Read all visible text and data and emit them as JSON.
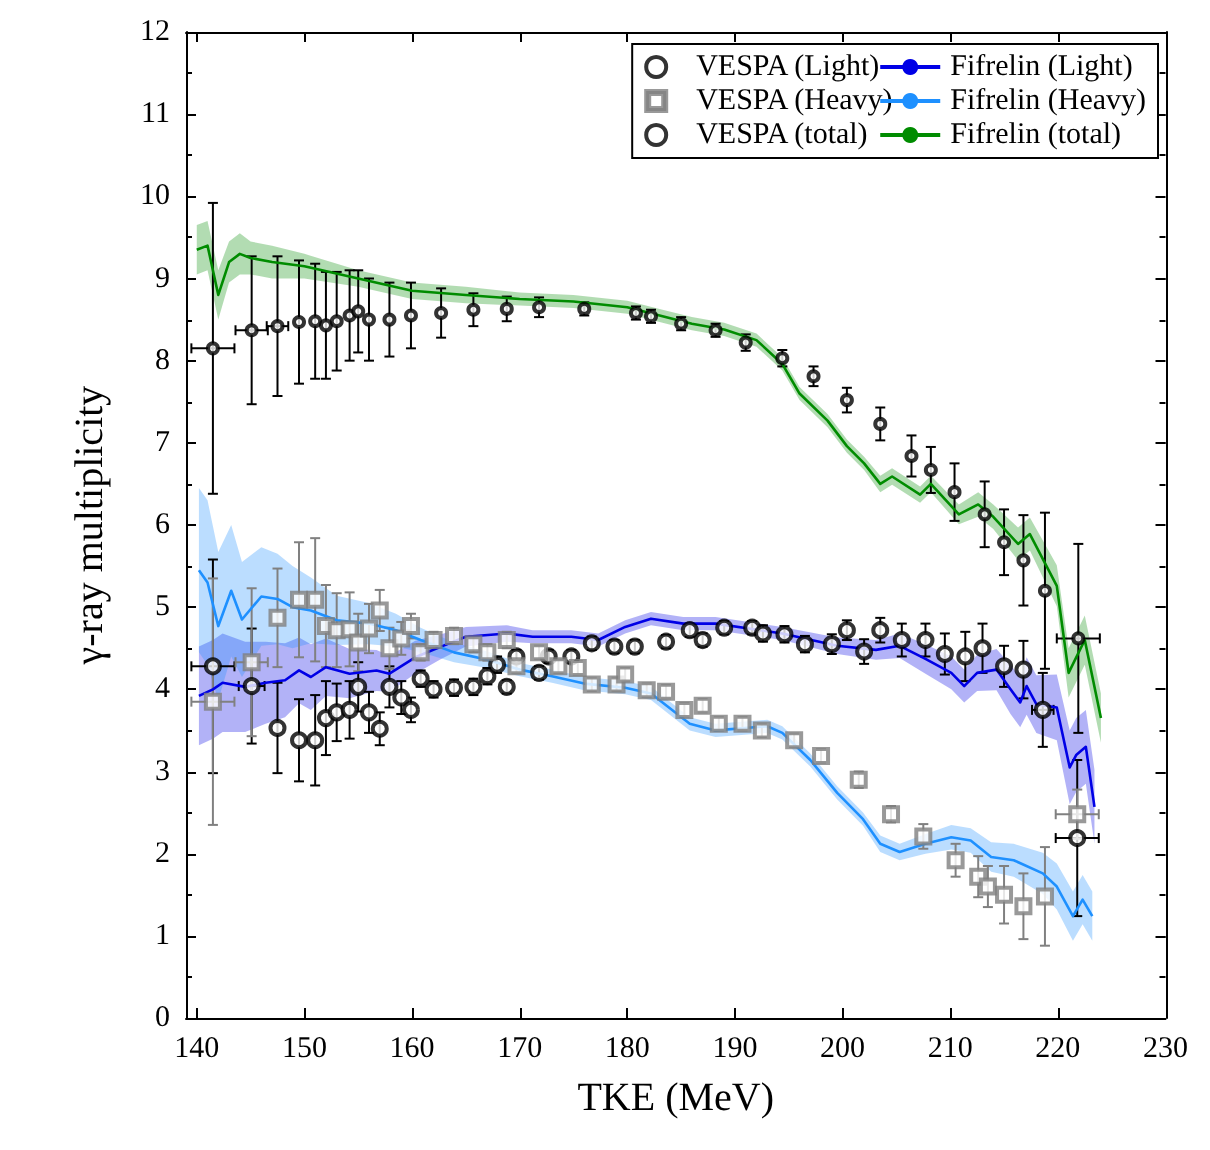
{
  "chart_data": {
    "type": "scatter",
    "xlabel": "TKE (MeV)",
    "ylabel": "γ-ray multiplicity",
    "xlim": [
      139,
      230
    ],
    "xticks": [
      140,
      150,
      160,
      170,
      180,
      190,
      200,
      210,
      220,
      230
    ],
    "ylim": [
      0,
      12
    ],
    "yticks": [
      0,
      1,
      2,
      3,
      4,
      5,
      6,
      7,
      8,
      9,
      10,
      11,
      12
    ],
    "grid": false,
    "legend": "top right",
    "series": [
      {
        "name": "VESPA (Light)",
        "marker": "circle",
        "color": "#000000",
        "x": [
          141.5,
          145.1,
          147.5,
          149.5,
          151,
          152,
          153,
          154.2,
          155,
          156,
          157,
          157.9,
          159,
          159.9,
          160.8,
          162,
          163.9,
          165.7,
          167,
          167.9,
          168.8,
          169.7,
          171.8,
          172.7,
          174.8,
          176.7,
          178.8,
          180.7,
          183.6,
          185.8,
          187,
          189,
          191.6,
          192.6,
          194.6,
          196.5,
          199,
          200.4,
          202,
          203.5,
          205.5,
          207.7,
          209.5,
          211.4,
          213,
          215,
          216.8,
          218.6,
          221.8
        ],
        "values": [
          4.28,
          4.04,
          3.53,
          3.38,
          3.38,
          3.65,
          3.72,
          3.75,
          4.03,
          3.72,
          3.52,
          4.03,
          3.9,
          3.75,
          4.13,
          4.0,
          4.02,
          4.03,
          4.16,
          4.3,
          4.03,
          4.4,
          4.2,
          4.4,
          4.4,
          4.56,
          4.52,
          4.52,
          4.58,
          4.72,
          4.6,
          4.75,
          4.75,
          4.68,
          4.67,
          4.55,
          4.55,
          4.72,
          4.46,
          4.72,
          4.6,
          4.6,
          4.43,
          4.4,
          4.5,
          4.28,
          4.24,
          3.75,
          2.19
        ],
        "errors": [
          1.3,
          0.7,
          0.55,
          0.5,
          0.55,
          0.45,
          0.35,
          0.35,
          0.3,
          0.25,
          0.2,
          0.25,
          0.2,
          0.15,
          0.1,
          0.1,
          0.1,
          0.1,
          0.1,
          0.1,
          0.08,
          0.08,
          0.08,
          0.08,
          0.08,
          0.08,
          0.08,
          0.08,
          0.08,
          0.08,
          0.08,
          0.08,
          0.08,
          0.1,
          0.1,
          0.1,
          0.12,
          0.12,
          0.15,
          0.15,
          0.2,
          0.2,
          0.25,
          0.3,
          0.3,
          0.25,
          0.35,
          0.45,
          0.95
        ],
        "xerrors": [
          2,
          1.2,
          null,
          null,
          null,
          null,
          null,
          null,
          null,
          null,
          null,
          null,
          null,
          null,
          null,
          null,
          null,
          null,
          null,
          null,
          null,
          null,
          null,
          null,
          null,
          null,
          null,
          null,
          null,
          null,
          null,
          null,
          null,
          null,
          null,
          null,
          null,
          null,
          null,
          null,
          null,
          null,
          null,
          null,
          null,
          null,
          null,
          1,
          2
        ]
      },
      {
        "name": "VESPA (Heavy)",
        "marker": "square",
        "color": "#808080",
        "x": [
          141.5,
          145.1,
          147.5,
          149.5,
          151,
          152,
          153,
          154.2,
          155,
          156,
          157,
          157.9,
          159,
          159.9,
          160.8,
          162,
          163.9,
          165.7,
          167,
          168.8,
          169.7,
          171.8,
          173.6,
          175.4,
          176.7,
          179,
          179.8,
          181.8,
          183.6,
          185.3,
          187,
          188.5,
          190.7,
          192.5,
          195.5,
          198,
          201.5,
          204.5,
          207.5,
          210.5,
          212.6,
          213.5,
          215,
          216.8,
          218.8,
          221.8
        ],
        "values": [
          3.85,
          4.33,
          4.87,
          5.09,
          5.09,
          4.77,
          4.72,
          4.73,
          4.57,
          4.74,
          4.96,
          4.5,
          4.62,
          4.77,
          4.45,
          4.6,
          4.65,
          4.55,
          4.45,
          4.6,
          4.28,
          4.45,
          4.28,
          4.26,
          4.06,
          4.06,
          4.18,
          3.99,
          3.97,
          3.75,
          3.8,
          3.58,
          3.58,
          3.5,
          3.38,
          3.19,
          2.9,
          2.48,
          2.21,
          1.92,
          1.72,
          1.6,
          1.5,
          1.36,
          1.48,
          2.48
        ],
        "errors": [
          1.5,
          0.9,
          0.6,
          0.7,
          0.75,
          0.5,
          0.45,
          0.45,
          0.35,
          0.3,
          0.25,
          0.25,
          0.2,
          0.15,
          0.1,
          0.1,
          0.1,
          0.1,
          0.1,
          0.1,
          0.08,
          0.08,
          0.08,
          0.08,
          0.08,
          0.08,
          0.08,
          0.08,
          0.08,
          0.08,
          0.08,
          0.08,
          0.08,
          0.08,
          0.08,
          0.08,
          0.1,
          0.1,
          0.15,
          0.2,
          0.25,
          0.25,
          0.35,
          0.4,
          0.6,
          0.3
        ],
        "xerrors": [
          2,
          1.5,
          null,
          null,
          null,
          null,
          null,
          null,
          null,
          null,
          null,
          null,
          null,
          null,
          null,
          null,
          null,
          null,
          null,
          null,
          null,
          null,
          null,
          null,
          null,
          null,
          null,
          null,
          null,
          null,
          null,
          null,
          null,
          null,
          null,
          null,
          null,
          null,
          null,
          null,
          null,
          null,
          null,
          null,
          null,
          2
        ]
      },
      {
        "name": "VESPA (total)",
        "marker": "circle",
        "color": "#000000",
        "x": [
          141.5,
          145.1,
          147.5,
          149.5,
          151,
          152,
          153,
          154.2,
          155,
          156,
          157.9,
          159.9,
          162.7,
          165.7,
          168.8,
          171.8,
          176,
          180.8,
          182.2,
          185,
          188.2,
          191,
          194.4,
          197.3,
          200.4,
          203.5,
          206.4,
          208.2,
          210.4,
          213.2,
          215,
          216.8,
          218.8,
          221.9
        ],
        "values": [
          8.15,
          8.37,
          8.42,
          8.47,
          8.48,
          8.43,
          8.48,
          8.55,
          8.6,
          8.5,
          8.5,
          8.55,
          8.58,
          8.62,
          8.63,
          8.65,
          8.63,
          8.58,
          8.54,
          8.45,
          8.37,
          8.22,
          8.03,
          7.81,
          7.52,
          7.23,
          6.84,
          6.67,
          6.4,
          6.13,
          5.79,
          5.57,
          5.2,
          4.62
        ],
        "errors": [
          1.77,
          0.9,
          0.85,
          0.75,
          0.7,
          0.65,
          0.6,
          0.55,
          0.5,
          0.5,
          0.45,
          0.4,
          0.3,
          0.2,
          0.15,
          0.12,
          0.08,
          0.08,
          0.08,
          0.08,
          0.08,
          0.1,
          0.1,
          0.12,
          0.15,
          0.2,
          0.25,
          0.28,
          0.35,
          0.4,
          0.4,
          0.55,
          0.95,
          1.15
        ],
        "xerrors": [
          2,
          1.5,
          1,
          null,
          null,
          null,
          null,
          null,
          null,
          null,
          null,
          null,
          null,
          null,
          null,
          null,
          null,
          null,
          null,
          null,
          null,
          null,
          null,
          null,
          null,
          null,
          null,
          null,
          null,
          null,
          null,
          null,
          null,
          2
        ]
      },
      {
        "name": "Fifrelin (Light)",
        "type": "line",
        "marker": "none",
        "color": "#0000e6",
        "x": [
          140.2,
          141.5,
          142.4,
          144.5,
          146.4,
          148.2,
          149.5,
          150.6,
          152,
          154.2,
          156.7,
          157.9,
          160.3,
          162.7,
          165,
          168.8,
          171.2,
          174.8,
          177.3,
          179.8,
          182.2,
          185.2,
          188.2,
          194.4,
          199.5,
          203.1,
          205.3,
          207.7,
          210.1,
          211.3,
          212.5,
          214.3,
          215.6,
          216.5,
          217.1,
          218,
          219.9,
          221.1,
          221.7,
          222.6,
          223.4
        ],
        "values": [
          3.92,
          4.0,
          4.08,
          4.03,
          4.08,
          4.11,
          4.23,
          4.15,
          4.27,
          4.19,
          4.23,
          4.19,
          4.39,
          4.52,
          4.64,
          4.68,
          4.64,
          4.64,
          4.6,
          4.76,
          4.86,
          4.8,
          4.8,
          4.68,
          4.53,
          4.48,
          4.53,
          4.37,
          4.2,
          4.04,
          4.2,
          4.24,
          4.0,
          3.84,
          4.04,
          3.82,
          3.78,
          3.05,
          3.2,
          3.3,
          2.57
        ],
        "lower": [
          3.32,
          3.4,
          3.48,
          3.48,
          3.58,
          3.66,
          3.83,
          3.75,
          3.92,
          3.89,
          3.98,
          3.97,
          4.19,
          4.37,
          4.52,
          4.58,
          4.56,
          4.56,
          4.52,
          4.68,
          4.78,
          4.72,
          4.72,
          4.6,
          4.43,
          4.36,
          4.38,
          4.19,
          4.0,
          3.84,
          3.98,
          3.99,
          3.7,
          3.54,
          3.69,
          3.47,
          3.38,
          2.6,
          2.75,
          2.85,
          2.12
        ],
        "upper": [
          4.52,
          4.6,
          4.68,
          4.58,
          4.58,
          4.56,
          4.63,
          4.55,
          4.62,
          4.49,
          4.48,
          4.41,
          4.59,
          4.67,
          4.76,
          4.78,
          4.72,
          4.72,
          4.68,
          4.84,
          4.94,
          4.88,
          4.88,
          4.76,
          4.63,
          4.6,
          4.68,
          4.55,
          4.4,
          4.24,
          4.42,
          4.49,
          4.3,
          4.14,
          4.39,
          4.17,
          4.18,
          3.5,
          3.65,
          3.75,
          3.02
        ]
      },
      {
        "name": "Fifrelin (Heavy)",
        "type": "line",
        "marker": "none",
        "color": "#1e90ff",
        "x": [
          140.2,
          141,
          142,
          143.2,
          144.2,
          146,
          147.5,
          148.9,
          150.6,
          153,
          156,
          158.5,
          160.8,
          163.9,
          167,
          170,
          173,
          176,
          179.8,
          182.2,
          185.8,
          188.2,
          193,
          194.4,
          197,
          199.5,
          201.9,
          203.5,
          205.3,
          207.7,
          210.1,
          211.9,
          213.8,
          215.9,
          218.6,
          219.9,
          221.4,
          222.3,
          223.2
        ],
        "values": [
          5.45,
          5.3,
          4.77,
          5.2,
          4.85,
          5.13,
          5.1,
          5.0,
          4.96,
          4.84,
          4.8,
          4.72,
          4.6,
          4.45,
          4.36,
          4.24,
          4.16,
          4.07,
          4.02,
          3.95,
          3.58,
          3.5,
          3.55,
          3.47,
          3.14,
          2.74,
          2.42,
          2.12,
          2.02,
          2.12,
          2.2,
          2.16,
          1.96,
          1.92,
          1.76,
          1.6,
          1.24,
          1.44,
          1.24
        ],
        "lower": [
          4.45,
          4.3,
          3.87,
          4.4,
          4.15,
          4.53,
          4.55,
          4.5,
          4.56,
          4.54,
          4.55,
          4.52,
          4.45,
          4.33,
          4.26,
          4.16,
          4.08,
          3.99,
          3.94,
          3.87,
          3.5,
          3.42,
          3.47,
          3.39,
          3.06,
          2.66,
          2.34,
          2.02,
          1.92,
          2.0,
          2.05,
          2.01,
          1.78,
          1.72,
          1.51,
          1.32,
          0.94,
          1.14,
          0.94
        ],
        "upper": [
          6.45,
          6.3,
          5.67,
          6.0,
          5.55,
          5.73,
          5.65,
          5.5,
          5.36,
          5.14,
          5.05,
          4.92,
          4.75,
          4.57,
          4.46,
          4.32,
          4.24,
          4.15,
          4.1,
          4.03,
          3.66,
          3.58,
          3.63,
          3.55,
          3.22,
          2.82,
          2.5,
          2.22,
          2.12,
          2.24,
          2.35,
          2.31,
          2.14,
          2.12,
          2.01,
          1.88,
          1.54,
          1.74,
          1.54
        ]
      },
      {
        "name": "Fifrelin (total)",
        "type": "line",
        "marker": "none",
        "color": "#008c00",
        "x": [
          140,
          141,
          142,
          143,
          144,
          145,
          147,
          150,
          155,
          160,
          165,
          170,
          175,
          180,
          183,
          186,
          189,
          192,
          194.4,
          196,
          198.6,
          200.4,
          202,
          203.5,
          204.6,
          207.2,
          208.2,
          210.8,
          212.6,
          214,
          216.3,
          217.4,
          219.9,
          221,
          222.5,
          224
        ],
        "values": [
          9.35,
          9.4,
          8.8,
          9.2,
          9.3,
          9.25,
          9.2,
          9.15,
          9.0,
          8.85,
          8.8,
          8.75,
          8.72,
          8.65,
          8.55,
          8.45,
          8.38,
          8.25,
          7.96,
          7.6,
          7.27,
          6.96,
          6.75,
          6.5,
          6.59,
          6.37,
          6.5,
          6.13,
          6.25,
          6.1,
          5.77,
          5.89,
          5.26,
          4.2,
          4.6,
          3.65
        ],
        "lower": [
          9.05,
          9.1,
          8.5,
          8.95,
          9.05,
          9.05,
          9.0,
          9.0,
          8.9,
          8.75,
          8.7,
          8.67,
          8.64,
          8.57,
          8.47,
          8.37,
          8.3,
          8.17,
          7.88,
          7.52,
          7.19,
          6.88,
          6.67,
          6.4,
          6.49,
          6.27,
          6.4,
          6.01,
          6.1,
          5.95,
          5.57,
          5.69,
          5.01,
          3.9,
          4.3,
          3.35
        ],
        "upper": [
          9.65,
          9.7,
          9.1,
          9.45,
          9.55,
          9.45,
          9.4,
          9.3,
          9.1,
          8.95,
          8.9,
          8.83,
          8.8,
          8.73,
          8.63,
          8.53,
          8.46,
          8.33,
          8.04,
          7.68,
          7.35,
          7.04,
          6.83,
          6.6,
          6.69,
          6.47,
          6.6,
          6.25,
          6.4,
          6.25,
          5.97,
          6.09,
          5.51,
          4.5,
          4.9,
          3.95
        ]
      }
    ]
  }
}
